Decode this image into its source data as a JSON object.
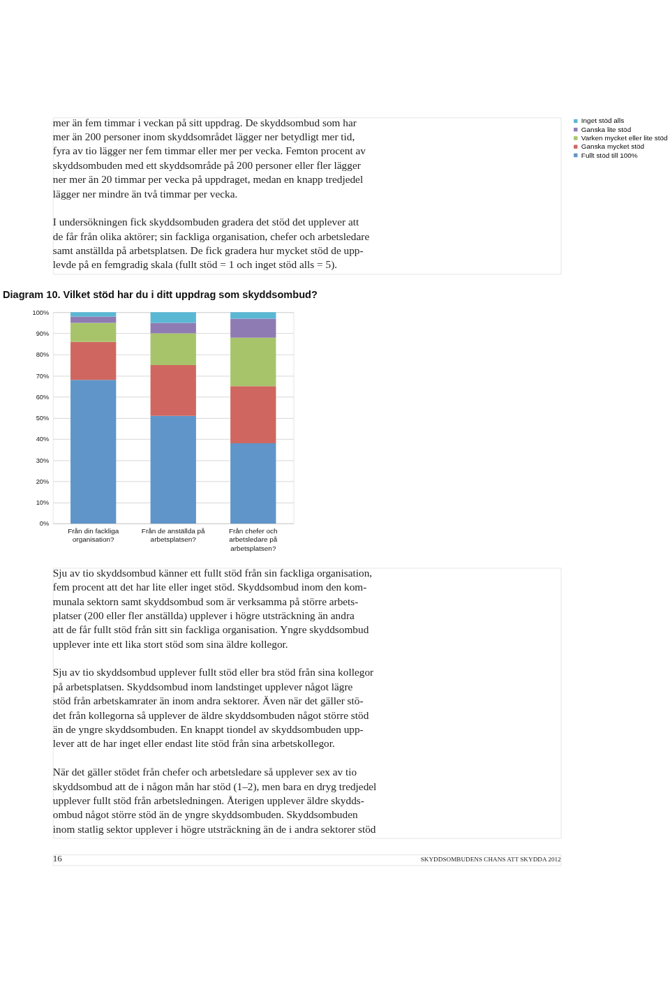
{
  "chart_data": {
    "type": "bar",
    "stacked": true,
    "title": "Diagram 10. Vilket stöd har du i ditt uppdrag som skyddsombud?",
    "categories": [
      "Från din fackliga organisation?",
      "Från de anställda på arbetsplatsen?",
      "Från chefer och arbetsledare på arbetsplatsen?"
    ],
    "series": [
      {
        "name": "Fullt stöd till 100%",
        "color": "#5f95c9",
        "values": [
          68,
          51,
          38
        ]
      },
      {
        "name": "Ganska mycket stöd",
        "color": "#cf6760",
        "values": [
          18,
          24,
          27
        ]
      },
      {
        "name": "Varken mycket eller lite stöd",
        "color": "#a7c46b",
        "values": [
          9,
          15,
          23
        ]
      },
      {
        "name": "Ganska lite stöd",
        "color": "#8f7bb3",
        "values": [
          3,
          5,
          9
        ]
      },
      {
        "name": "Inget stöd alls",
        "color": "#5ab8d4",
        "values": [
          2,
          5,
          3
        ]
      }
    ],
    "ylim": [
      0,
      100
    ],
    "yticks": [
      {
        "value": 0,
        "label": "0%"
      },
      {
        "value": 10,
        "label": "10%"
      },
      {
        "value": 20,
        "label": "20%"
      },
      {
        "value": 30,
        "label": "30%"
      },
      {
        "value": 40,
        "label": "40%"
      },
      {
        "value": 50,
        "label": "50%"
      },
      {
        "value": 60,
        "label": "60%"
      },
      {
        "value": 70,
        "label": "70%"
      },
      {
        "value": 80,
        "label": "80%"
      },
      {
        "value": 90,
        "label": "90%"
      },
      {
        "value": 100,
        "label": "100%"
      }
    ],
    "grid": "y",
    "legend": "right",
    "annotations": [
      "mer än fem timmar i veckan på sitt uppdrag. De skyddsombud som har\nmer än 200 personer inom skyddsområdet lägger ner betydligt mer tid,\nfyra av tio lägger ner fem timmar eller mer per vecka. Femton procent av\nskyddsombuden med ett skyddsområde på 200 personer eller fler lägger\nner mer än 20 timmar per vecka på uppdraget, medan en knapp tredjedel\nlägger ner mindre än två timmar per vecka.",
      "I undersökningen fick skyddsombuden gradera det stöd det upplever att\nde får från olika aktörer; sin fackliga organisation, chefer och arbetsledare\nsamt anställda på arbetsplatsen. De fick gradera hur mycket stöd de upp-\nlevde på en femgradig skala (fullt stöd = 1 och inget stöd alls = 5).",
      "Sju av tio skyddsombud känner ett fullt stöd från sin fackliga organisation,\nfem procent att det har lite eller inget stöd. Skyddsombud inom den kom-\nmunala sektorn samt skyddsombud som är verksamma på större arbets-\nplatser (200 eller fler anställda) upplever i högre utsträckning än andra\natt de får fullt stöd från sitt sin fackliga organisation. Yngre skyddsombud\nupplever inte ett lika stort stöd som sina äldre kollegor.",
      "Sju av tio skyddsombud upplever fullt stöd eller bra stöd från sina kollegor\npå arbetsplatsen. Skyddsombud inom landstinget upplever något lägre\nstöd från arbetskamrater än inom andra sektorer. Även när det gäller stö-\ndet från kollegorna så upplever de äldre skyddsombuden något större stöd\nän de yngre skyddsombuden. En knappt tiondel av skyddsombuden upp-\nlever att de har inget eller endast lite stöd från sina arbetskollegor.",
      "När det gäller stödet från chefer och arbetsledare så upplever sex av tio\nskyddsombud att de i någon mån har stöd (1–2), men bara en dryg tredjedel\nupplever fullt stöd från arbetsledningen. Återigen upplever äldre skydds-\nombud något större stöd än de yngre skyddsombuden. Skyddsombuden\ninom statlig sektor upplever i högre utsträckning än de i andra sektorer stöd",
      "16",
      "SKYDDSOMBUDENS CHANS ATT SKYDDA 2012"
    ]
  }
}
